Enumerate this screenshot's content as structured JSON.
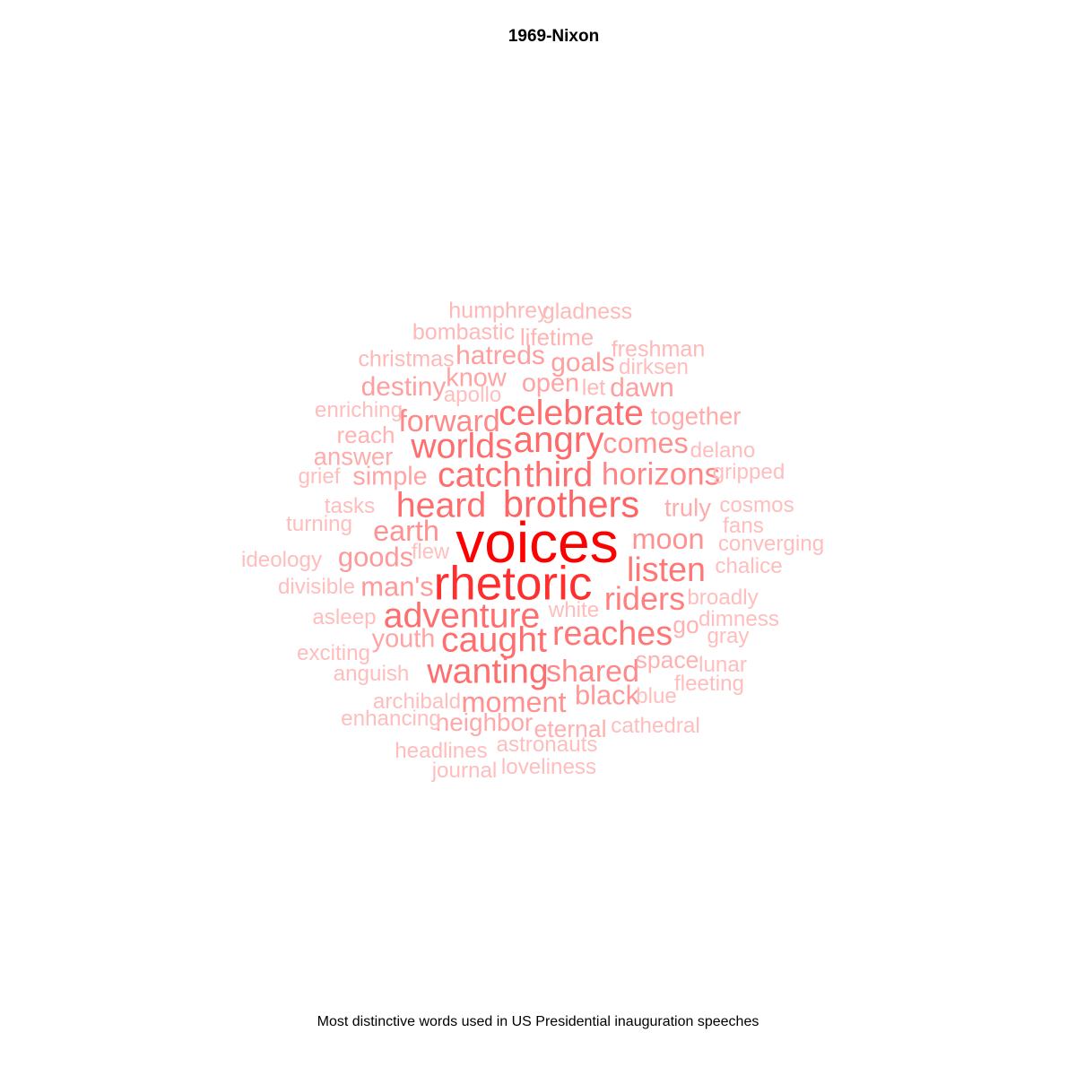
{
  "chart": {
    "title": "1969-Nixon",
    "caption": "Most distinctive words used in US Presidential inauguration speeches"
  },
  "chart_data": {
    "type": "wordcloud",
    "color_scale": {
      "low": "#ffc0c0",
      "high": "#ff0000"
    },
    "words": [
      {
        "word": "voices",
        "weight": 1.0
      },
      {
        "word": "rhetoric",
        "weight": 0.82
      },
      {
        "word": "brothers",
        "weight": 0.62
      },
      {
        "word": "angry",
        "weight": 0.6
      },
      {
        "word": "celebrate",
        "weight": 0.58
      },
      {
        "word": "worlds",
        "weight": 0.58
      },
      {
        "word": "heard",
        "weight": 0.58
      },
      {
        "word": "catch",
        "weight": 0.58
      },
      {
        "word": "third",
        "weight": 0.58
      },
      {
        "word": "adventure",
        "weight": 0.58
      },
      {
        "word": "caught",
        "weight": 0.58
      },
      {
        "word": "wanting",
        "weight": 0.58
      },
      {
        "word": "reaches",
        "weight": 0.55
      },
      {
        "word": "listen",
        "weight": 0.55
      },
      {
        "word": "riders",
        "weight": 0.52
      },
      {
        "word": "horizons",
        "weight": 0.5
      },
      {
        "word": "forward",
        "weight": 0.48
      },
      {
        "word": "shared",
        "weight": 0.48
      },
      {
        "word": "comes",
        "weight": 0.45
      },
      {
        "word": "moon",
        "weight": 0.45
      },
      {
        "word": "moment",
        "weight": 0.45
      },
      {
        "word": "earth",
        "weight": 0.45
      },
      {
        "word": "man's",
        "weight": 0.42
      },
      {
        "word": "goods",
        "weight": 0.42
      },
      {
        "word": "black",
        "weight": 0.42
      },
      {
        "word": "hatreds",
        "weight": 0.4
      },
      {
        "word": "goals",
        "weight": 0.4
      },
      {
        "word": "dawn",
        "weight": 0.4
      },
      {
        "word": "destiny",
        "weight": 0.4
      },
      {
        "word": "know",
        "weight": 0.38
      },
      {
        "word": "open",
        "weight": 0.38
      },
      {
        "word": "simple",
        "weight": 0.38
      },
      {
        "word": "youth",
        "weight": 0.38
      },
      {
        "word": "neighbor",
        "weight": 0.36
      },
      {
        "word": "together",
        "weight": 0.35
      },
      {
        "word": "truly",
        "weight": 0.35
      },
      {
        "word": "answer",
        "weight": 0.35
      },
      {
        "word": "space",
        "weight": 0.33
      },
      {
        "word": "eternal",
        "weight": 0.33
      },
      {
        "word": "go",
        "weight": 0.33
      },
      {
        "word": "lifetime",
        "weight": 0.32
      },
      {
        "word": "reach",
        "weight": 0.32
      },
      {
        "word": "let",
        "weight": 0.3
      },
      {
        "word": "humphrey",
        "weight": 0.3
      },
      {
        "word": "gladness",
        "weight": 0.3
      },
      {
        "word": "bombastic",
        "weight": 0.3
      },
      {
        "word": "christmas",
        "weight": 0.3
      },
      {
        "word": "freshman",
        "weight": 0.3
      },
      {
        "word": "dirksen",
        "weight": 0.28
      },
      {
        "word": "apollo",
        "weight": 0.28
      },
      {
        "word": "enriching",
        "weight": 0.28
      },
      {
        "word": "delano",
        "weight": 0.28
      },
      {
        "word": "grief",
        "weight": 0.28
      },
      {
        "word": "gripped",
        "weight": 0.28
      },
      {
        "word": "tasks",
        "weight": 0.28
      },
      {
        "word": "cosmos",
        "weight": 0.28
      },
      {
        "word": "turning",
        "weight": 0.28
      },
      {
        "word": "fans",
        "weight": 0.28
      },
      {
        "word": "flew",
        "weight": 0.27
      },
      {
        "word": "converging",
        "weight": 0.28
      },
      {
        "word": "ideology",
        "weight": 0.28
      },
      {
        "word": "chalice",
        "weight": 0.28
      },
      {
        "word": "divisible",
        "weight": 0.28
      },
      {
        "word": "broadly",
        "weight": 0.28
      },
      {
        "word": "white",
        "weight": 0.28
      },
      {
        "word": "asleep",
        "weight": 0.28
      },
      {
        "word": "dimness",
        "weight": 0.28
      },
      {
        "word": "gray",
        "weight": 0.28
      },
      {
        "word": "exciting",
        "weight": 0.28
      },
      {
        "word": "lunar",
        "weight": 0.28
      },
      {
        "word": "anguish",
        "weight": 0.28
      },
      {
        "word": "fleeting",
        "weight": 0.28
      },
      {
        "word": "archibald",
        "weight": 0.28
      },
      {
        "word": "blue",
        "weight": 0.28
      },
      {
        "word": "enhancing",
        "weight": 0.28
      },
      {
        "word": "cathedral",
        "weight": 0.28
      },
      {
        "word": "astronauts",
        "weight": 0.28
      },
      {
        "word": "headlines",
        "weight": 0.28
      },
      {
        "word": "journal",
        "weight": 0.28
      },
      {
        "word": "loveliness",
        "weight": 0.28
      }
    ]
  }
}
